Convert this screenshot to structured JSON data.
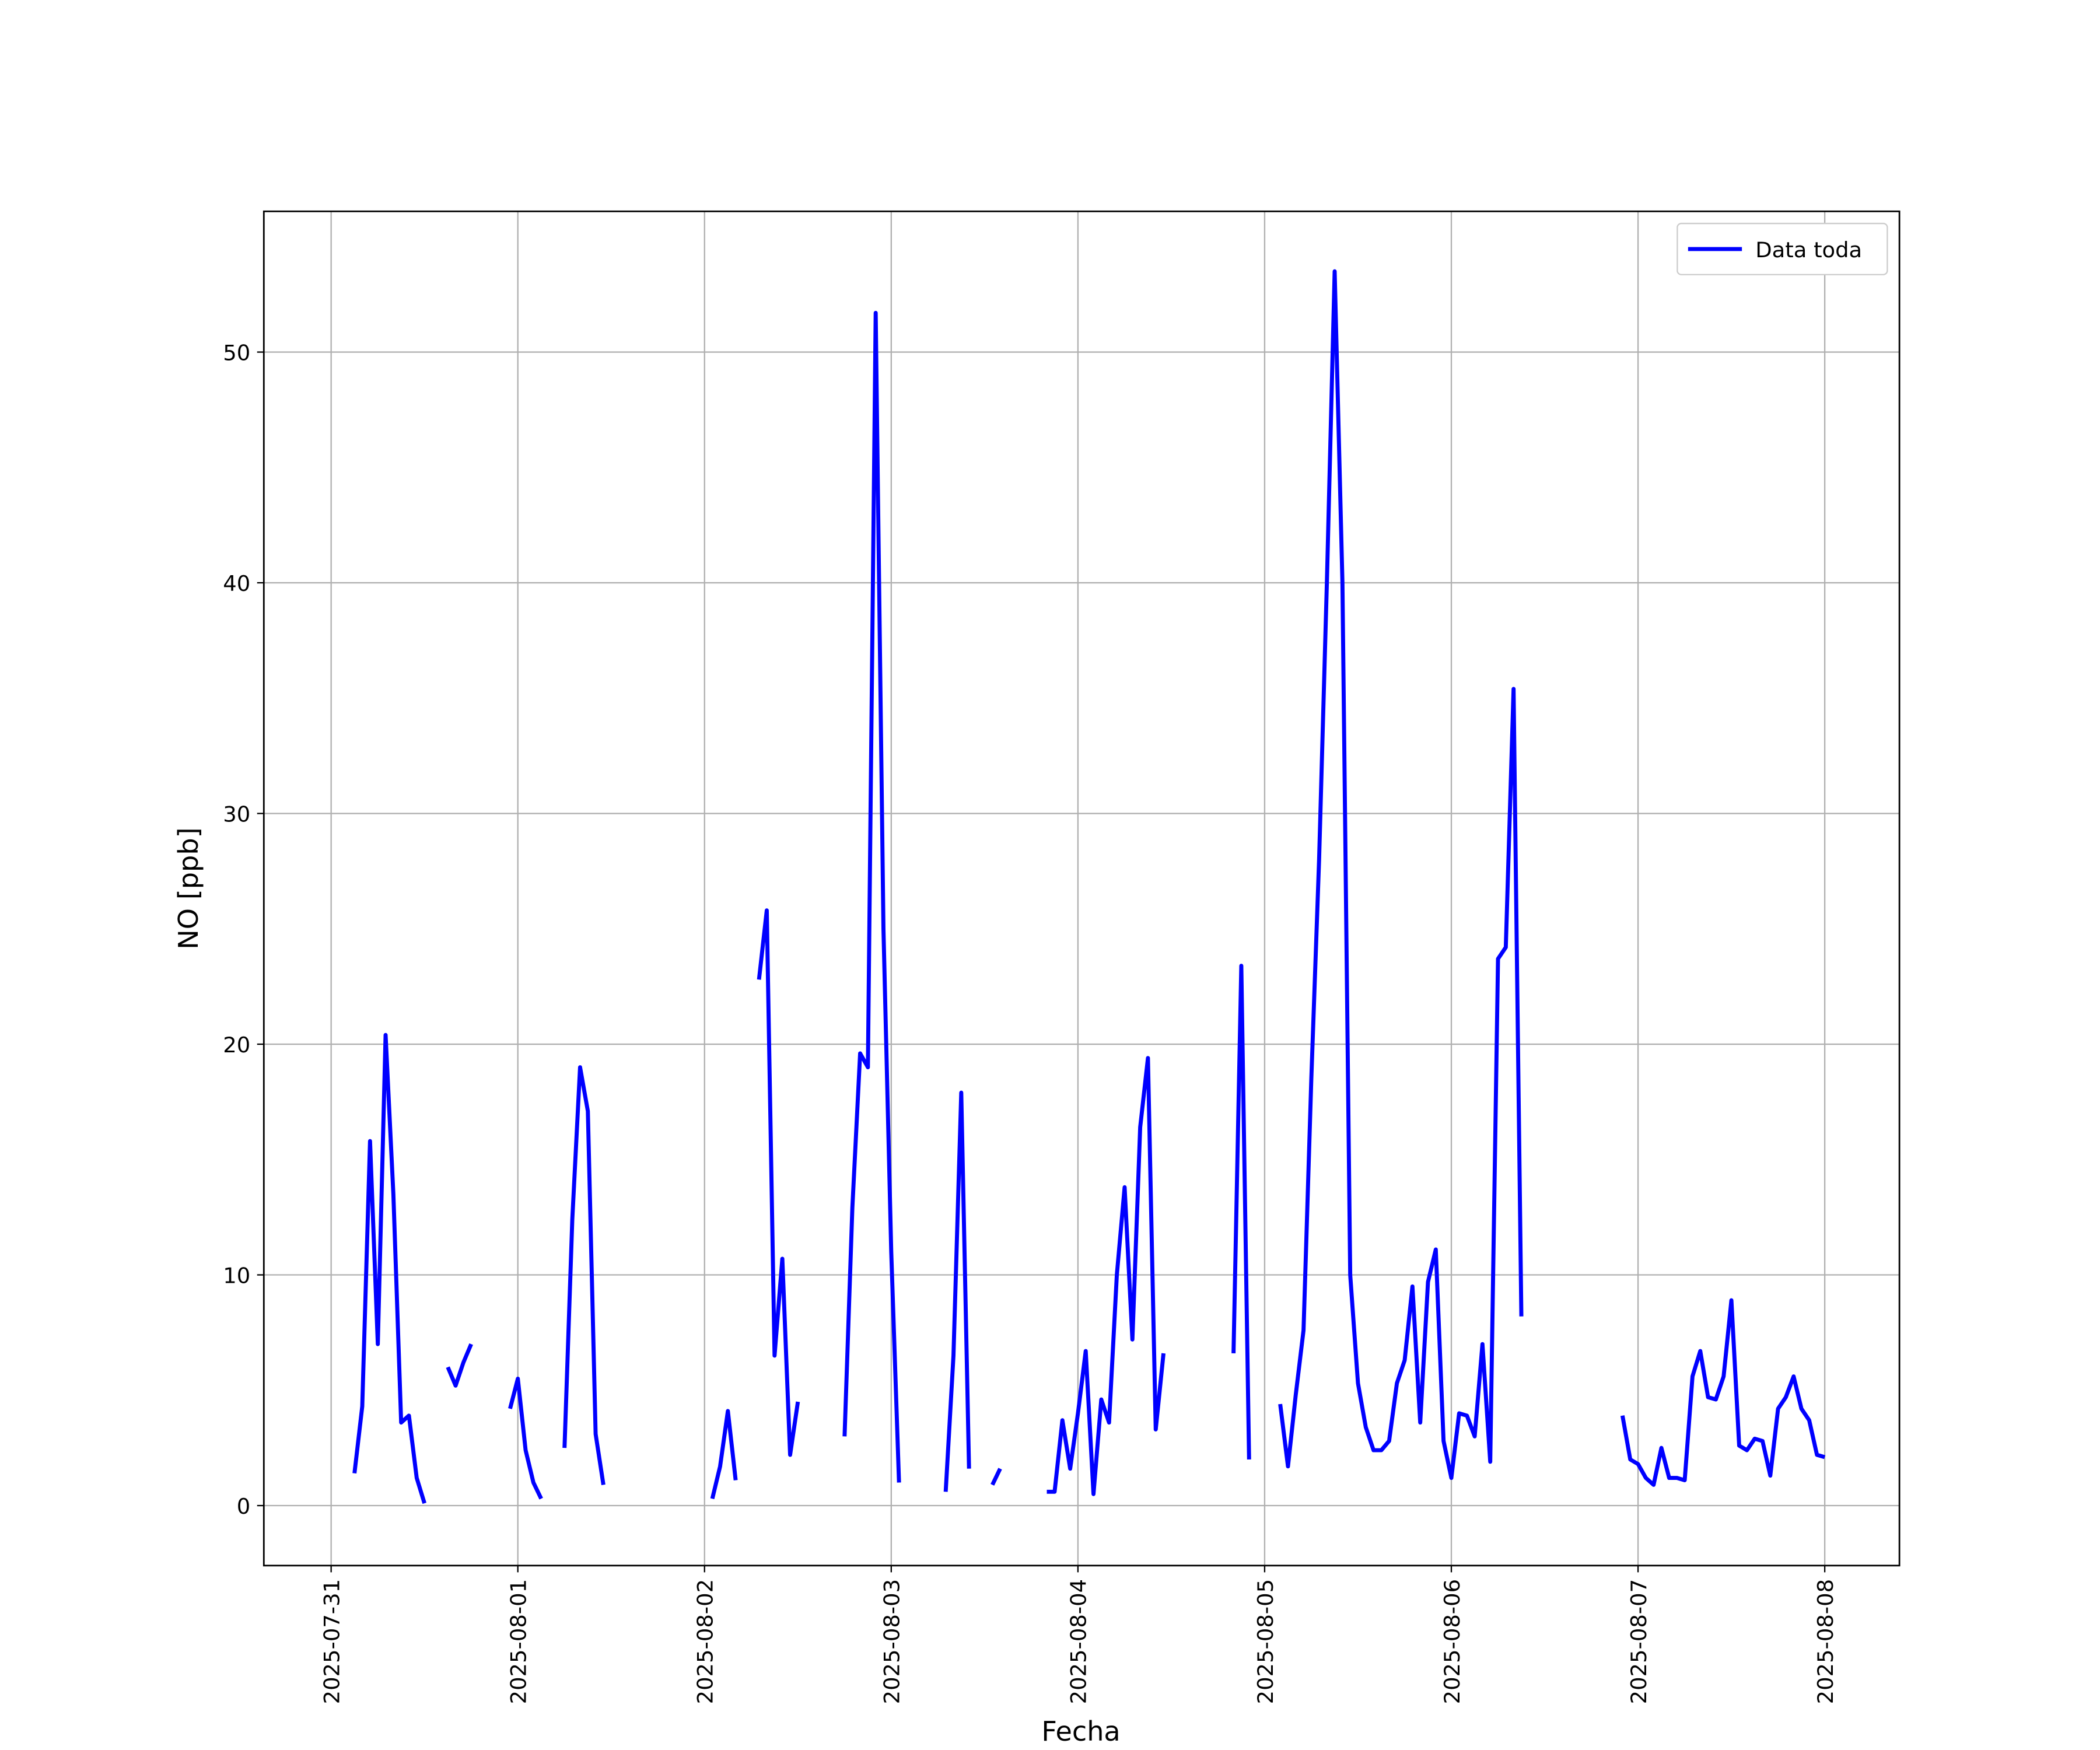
{
  "chart_data": {
    "type": "line",
    "xlabel": "Fecha",
    "ylabel": "NO [ppb]",
    "x": [
      "2025-07-31 03:00",
      "2025-07-31 04:00",
      "2025-07-31 05:00",
      "2025-07-31 06:00",
      "2025-07-31 07:00",
      "2025-07-31 08:00",
      "2025-07-31 09:00",
      "2025-07-31 10:00",
      "2025-07-31 11:00",
      "2025-07-31 12:00",
      "2025-07-31 13:00",
      "2025-07-31 15:00",
      "2025-07-31 16:00",
      "2025-07-31 17:00",
      "2025-07-31 18:00",
      "2025-07-31 19:00",
      "2025-07-31 23:00",
      "2025-08-01 00:00",
      "2025-08-01 01:00",
      "2025-08-01 02:00",
      "2025-08-01 03:00",
      "2025-08-01 04:00",
      "2025-08-01 06:00",
      "2025-08-01 07:00",
      "2025-08-01 08:00",
      "2025-08-01 09:00",
      "2025-08-01 10:00",
      "2025-08-01 11:00",
      "2025-08-01 12:00",
      "2025-08-02 01:00",
      "2025-08-02 02:00",
      "2025-08-02 03:00",
      "2025-08-02 04:00",
      "2025-08-02 05:00",
      "2025-08-02 07:00",
      "2025-08-02 08:00",
      "2025-08-02 09:00",
      "2025-08-02 10:00",
      "2025-08-02 11:00",
      "2025-08-02 12:00",
      "2025-08-02 13:00",
      "2025-08-02 18:00",
      "2025-08-02 19:00",
      "2025-08-02 20:00",
      "2025-08-02 21:00",
      "2025-08-02 22:00",
      "2025-08-02 23:00",
      "2025-08-03 00:00",
      "2025-08-03 01:00",
      "2025-08-03 02:00",
      "2025-08-03 07:00",
      "2025-08-03 08:00",
      "2025-08-03 09:00",
      "2025-08-03 10:00",
      "2025-08-03 11:00",
      "2025-08-03 13:00",
      "2025-08-03 14:00",
      "2025-08-03 15:00",
      "2025-08-03 20:00",
      "2025-08-03 21:00",
      "2025-08-03 22:00",
      "2025-08-03 23:00",
      "2025-08-04 00:00",
      "2025-08-04 01:00",
      "2025-08-04 02:00",
      "2025-08-04 03:00",
      "2025-08-04 04:00",
      "2025-08-04 05:00",
      "2025-08-04 06:00",
      "2025-08-04 07:00",
      "2025-08-04 08:00",
      "2025-08-04 09:00",
      "2025-08-04 10:00",
      "2025-08-04 11:00",
      "2025-08-04 12:00",
      "2025-08-04 20:00",
      "2025-08-04 21:00",
      "2025-08-04 22:00",
      "2025-08-04 23:00",
      "2025-08-05 02:00",
      "2025-08-05 03:00",
      "2025-08-05 04:00",
      "2025-08-05 05:00",
      "2025-08-05 06:00",
      "2025-08-05 07:00",
      "2025-08-05 08:00",
      "2025-08-05 09:00",
      "2025-08-05 10:00",
      "2025-08-05 11:00",
      "2025-08-05 12:00",
      "2025-08-05 13:00",
      "2025-08-05 14:00",
      "2025-08-05 15:00",
      "2025-08-05 16:00",
      "2025-08-05 17:00",
      "2025-08-05 18:00",
      "2025-08-05 19:00",
      "2025-08-05 20:00",
      "2025-08-05 21:00",
      "2025-08-05 22:00",
      "2025-08-05 23:00",
      "2025-08-06 00:00",
      "2025-08-06 01:00",
      "2025-08-06 02:00",
      "2025-08-06 03:00",
      "2025-08-06 04:00",
      "2025-08-06 05:00",
      "2025-08-06 06:00",
      "2025-08-06 07:00",
      "2025-08-06 08:00",
      "2025-08-06 09:00",
      "2025-08-06 10:00",
      "2025-08-06 22:00",
      "2025-08-06 23:00",
      "2025-08-07 00:00",
      "2025-08-07 01:00",
      "2025-08-07 02:00",
      "2025-08-07 03:00",
      "2025-08-07 04:00",
      "2025-08-07 05:00",
      "2025-08-07 06:00",
      "2025-08-07 07:00",
      "2025-08-07 08:00",
      "2025-08-07 09:00",
      "2025-08-07 10:00",
      "2025-08-07 11:00",
      "2025-08-07 12:00",
      "2025-08-07 13:00",
      "2025-08-07 14:00",
      "2025-08-07 15:00",
      "2025-08-07 16:00",
      "2025-08-07 17:00",
      "2025-08-07 18:00",
      "2025-08-07 19:00",
      "2025-08-07 20:00",
      "2025-08-07 21:00",
      "2025-08-07 22:00",
      "2025-08-07 23:00",
      "2025-08-08 00:00"
    ],
    "series": [
      {
        "name": "Data toda",
        "color": "#0000ff",
        "values": [
          1.4,
          4.3,
          15.8,
          7.0,
          20.4,
          13.5,
          3.6,
          3.9,
          1.2,
          0.1,
          null,
          6.0,
          5.2,
          6.2,
          7.0,
          null,
          4.2,
          5.5,
          2.4,
          1.0,
          0.3,
          null,
          2.5,
          12.4,
          19.0,
          17.1,
          3.1,
          0.9,
          null,
          0.3,
          1.7,
          4.1,
          1.1,
          null,
          22.8,
          25.8,
          6.5,
          10.7,
          2.2,
          4.5,
          null,
          3.0,
          12.9,
          19.6,
          19.0,
          51.7,
          25.0,
          11.0,
          1.0,
          null,
          0.6,
          6.5,
          17.9,
          1.6,
          null,
          0.9,
          1.6,
          null,
          0.6,
          0.6,
          3.7,
          1.6,
          4.0,
          6.7,
          0.5,
          4.6,
          3.6,
          10.0,
          13.8,
          7.2,
          16.4,
          19.4,
          3.3,
          6.6,
          null,
          6.6,
          23.4,
          2.0,
          null,
          4.4,
          1.7,
          4.8,
          7.6,
          18.5,
          28.0,
          40.0,
          53.5,
          40.0,
          10.0,
          5.3,
          3.4,
          2.4,
          2.4,
          2.8,
          5.3,
          6.3,
          9.5,
          3.6,
          9.7,
          11.1,
          2.8,
          1.2,
          4.0,
          3.9,
          3.0,
          7.0,
          1.9,
          23.7,
          24.2,
          35.4,
          8.2,
          null,
          3.9,
          2.0,
          1.8,
          1.2,
          0.9,
          2.5,
          1.2,
          1.2,
          1.1,
          5.6,
          6.7,
          4.7,
          4.6,
          5.6,
          8.9,
          2.6,
          2.4,
          2.9,
          2.8,
          1.3,
          4.2,
          4.7,
          5.6,
          4.2,
          3.7,
          2.2,
          2.1
        ]
      }
    ],
    "xlim": [
      "2025-07-30 15:21",
      "2025-08-08 09:36"
    ],
    "xticks": [
      "2025-07-31",
      "2025-08-01",
      "2025-08-02",
      "2025-08-03",
      "2025-08-04",
      "2025-08-05",
      "2025-08-06",
      "2025-08-07",
      "2025-08-08"
    ],
    "ylim": [
      -2.6,
      56.1
    ],
    "yticks": [
      0,
      10,
      20,
      30,
      40,
      50
    ],
    "grid": true,
    "legend": "upper right"
  }
}
